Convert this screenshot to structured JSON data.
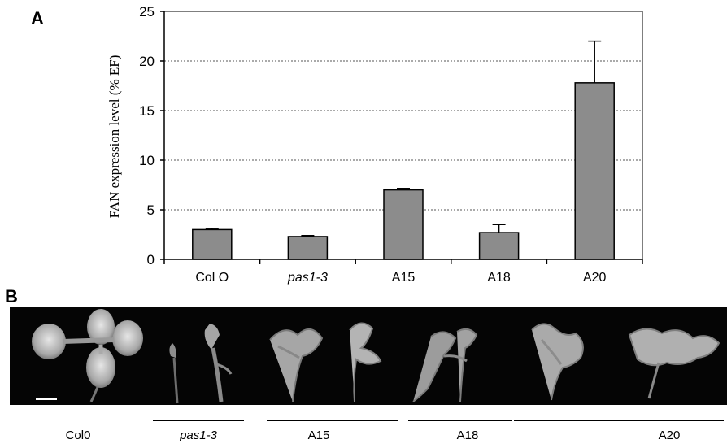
{
  "panels": {
    "a_label": "A",
    "b_label": "B"
  },
  "chart_data": {
    "type": "bar",
    "categories": [
      "Col O",
      "pas1-3",
      "A15",
      "A18",
      "A20"
    ],
    "italic_categories": [
      "pas1-3"
    ],
    "values": [
      3.0,
      2.3,
      7.0,
      2.7,
      17.8
    ],
    "error": [
      0.1,
      0.1,
      0.15,
      0.8,
      4.2
    ],
    "ylabel": "FAN expression level (% EF)",
    "xlabel": "",
    "ylim": [
      0,
      25
    ],
    "yticks": [
      0,
      5,
      10,
      15,
      20,
      25
    ],
    "grid": "horizontal dotted",
    "bar_color": "#8c8c8c",
    "bar_edge_color": "#000000"
  },
  "photo_captions": [
    {
      "id": "col0",
      "label": "Col0",
      "italic": false
    },
    {
      "id": "pas13",
      "label": "pas1-3",
      "italic": true
    },
    {
      "id": "a15",
      "label": "A15",
      "italic": false
    },
    {
      "id": "a18",
      "label": "A18",
      "italic": false
    },
    {
      "id": "a20",
      "label": "A20",
      "italic": false
    }
  ]
}
